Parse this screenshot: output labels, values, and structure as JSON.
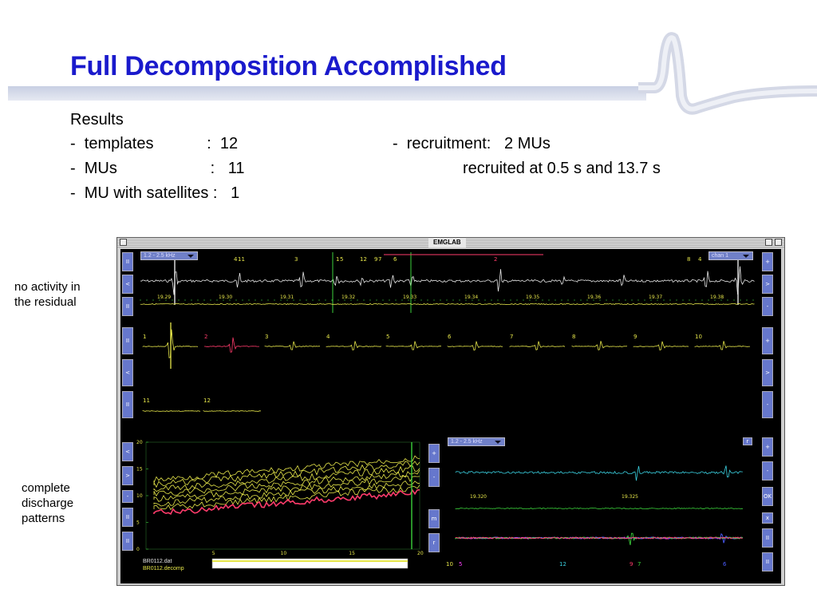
{
  "slide": {
    "title": "Full Decomposition Accomplished",
    "results_heading": "Results",
    "row1_left": "-  templates            :  12",
    "row1_right": "-  recruitment:   2 MUs",
    "row2_left": "-  MUs                     :   11",
    "row2_right": "recruited at 0.5 s and 13.7 s",
    "row3_left": "-  MU with satellites :   1"
  },
  "notes": {
    "residual": [
      "no activity in",
      "the residual"
    ],
    "discharge": [
      "complete",
      "discharge",
      "patterns"
    ]
  },
  "app": {
    "title": "EMGLAB",
    "top_filter": "1.2 - 2.5 kHz",
    "channel": "chan 1",
    "bottom_filter": "1.2 - 2.5 kHz",
    "top_btn_r": "r",
    "bottom_btn_r": "r",
    "file1": "BR0112.dat",
    "file2": "BR0112.decomp",
    "top_trace_labels": [
      "4",
      "11",
      "3",
      "1",
      "5",
      "12",
      "9",
      "7",
      "6",
      "2",
      "8",
      "4"
    ],
    "time_ticks": [
      "19.29",
      "19.30",
      "19.31",
      "19.32",
      "19.33",
      "19.34",
      "19.35",
      "19.36",
      "19.37",
      "19.38"
    ],
    "template_labels_row1": [
      "1",
      "2",
      "3",
      "4",
      "5",
      "6",
      "7",
      "8",
      "9",
      "10"
    ],
    "template_labels_row2": [
      "11",
      "12"
    ],
    "rate_yticks": [
      "20",
      "15",
      "10",
      "5",
      "0"
    ],
    "rate_xticks": [
      "5",
      "10",
      "15",
      "20"
    ],
    "zoom_time_ticks": [
      "19.320",
      "19.325"
    ],
    "zoom_unit_labels": [
      "10",
      "5",
      "12",
      "9",
      "7",
      "6"
    ],
    "buttons": {
      "left_top": [
        "II",
        "<",
        "II"
      ],
      "left_mid": [
        "II",
        "<",
        "II"
      ],
      "left_bottom": [
        "<",
        ">",
        "-",
        "II",
        "II"
      ],
      "right_top": [
        "+",
        ">",
        "-"
      ],
      "right_mid": [
        "+",
        ">",
        "-"
      ],
      "mid_col": [
        "+",
        "-",
        "m",
        "r"
      ],
      "right_bottom": [
        "+",
        "-",
        "OK",
        "x",
        "II",
        "II"
      ]
    },
    "colors": {
      "trace_white": "#e8e8e8",
      "trace_yellow": "#e6e64a",
      "trace_red": "#ff3b6b",
      "trace_green": "#3bd13b",
      "trace_cyan": "#3ad0e0",
      "trace_magenta": "#ff40ff",
      "trace_blue": "#4c5cff",
      "button_blue": "#6677cc"
    }
  }
}
